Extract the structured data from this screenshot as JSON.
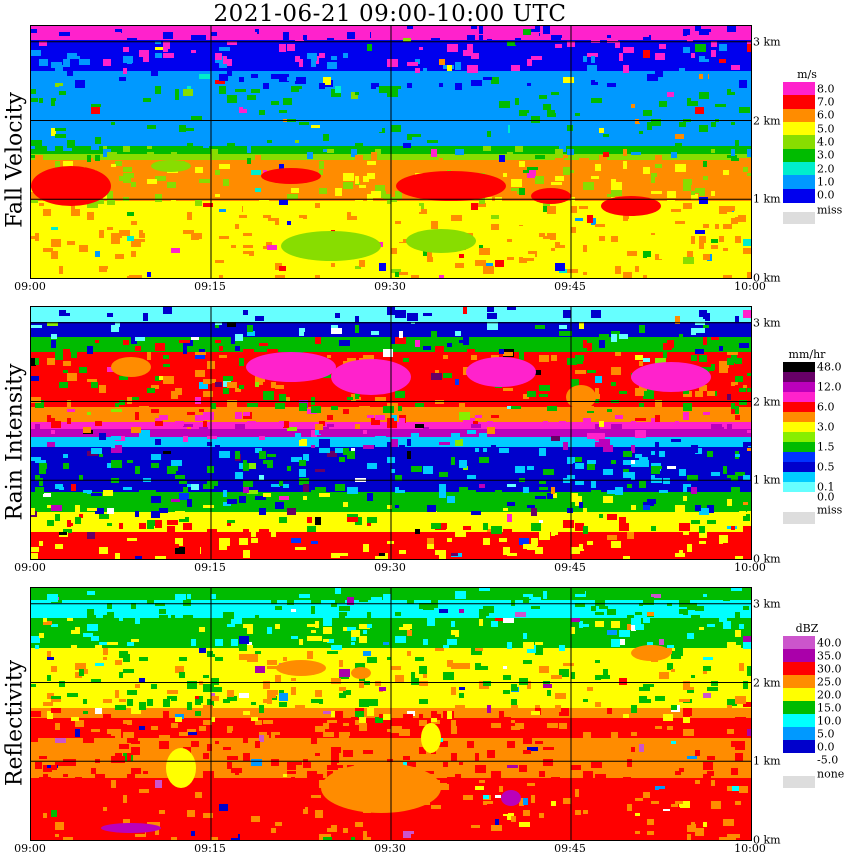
{
  "title": "2021-06-21   09:00-10:00 UTC",
  "x_ticks": [
    "09:00",
    "09:15",
    "09:30",
    "09:45",
    "10:00"
  ],
  "y_ticks": [
    "0 km",
    "1 km",
    "2 km",
    "3 km"
  ],
  "panels": [
    {
      "label": "Fall Velocity",
      "unit": "m/s",
      "missing_label": "miss",
      "legend": [
        {
          "label": "8.0",
          "color": "#ff22cc"
        },
        {
          "label": "7.0",
          "color": "#ff0000"
        },
        {
          "label": "6.0",
          "color": "#ff8c00"
        },
        {
          "label": "5.0",
          "color": "#ffff00"
        },
        {
          "label": "4.0",
          "color": "#88dd00"
        },
        {
          "label": "3.0",
          "color": "#00bb00"
        },
        {
          "label": "2.0",
          "color": "#00eecc"
        },
        {
          "label": "1.0",
          "color": "#0099ff"
        },
        {
          "label": "0.0",
          "color": "#0000ee"
        }
      ]
    },
    {
      "label": "Rain Intensity",
      "unit": "mm/hr",
      "missing_label": "miss",
      "legend": [
        {
          "label": "48.0",
          "color": "#000000"
        },
        {
          "label": "",
          "color": "#660066"
        },
        {
          "label": "12.0",
          "color": "#bb00bb"
        },
        {
          "label": "",
          "color": "#ff22cc"
        },
        {
          "label": "6.0",
          "color": "#ff0000"
        },
        {
          "label": "",
          "color": "#ff8c00"
        },
        {
          "label": "3.0",
          "color": "#ffff00"
        },
        {
          "label": "",
          "color": "#88ee00"
        },
        {
          "label": "1.5",
          "color": "#00bb00"
        },
        {
          "label": "",
          "color": "#0033ff"
        },
        {
          "label": "0.5",
          "color": "#0000cc"
        },
        {
          "label": "",
          "color": "#00ccff"
        },
        {
          "label": "0.1",
          "color": "#66ffff"
        },
        {
          "label": "0.0",
          "color": "#ffffff"
        }
      ]
    },
    {
      "label": "Reflectivity",
      "unit": "dBZ",
      "missing_label": "none",
      "legend": [
        {
          "label": "40.0",
          "color": "#cc55cc"
        },
        {
          "label": "35.0",
          "color": "#aa00aa"
        },
        {
          "label": "30.0",
          "color": "#ff0000"
        },
        {
          "label": "25.0",
          "color": "#ff8c00"
        },
        {
          "label": "20.0",
          "color": "#ffff00"
        },
        {
          "label": "15.0",
          "color": "#00bb00"
        },
        {
          "label": "10.0",
          "color": "#00ffff"
        },
        {
          "label": "5.0",
          "color": "#0099ff"
        },
        {
          "label": "0.0",
          "color": "#0000cc"
        },
        {
          "label": "-5.0",
          "color": "#ffffff"
        }
      ]
    }
  ],
  "colors": {
    "missing": "#dddddd",
    "grid": "#000000"
  }
}
